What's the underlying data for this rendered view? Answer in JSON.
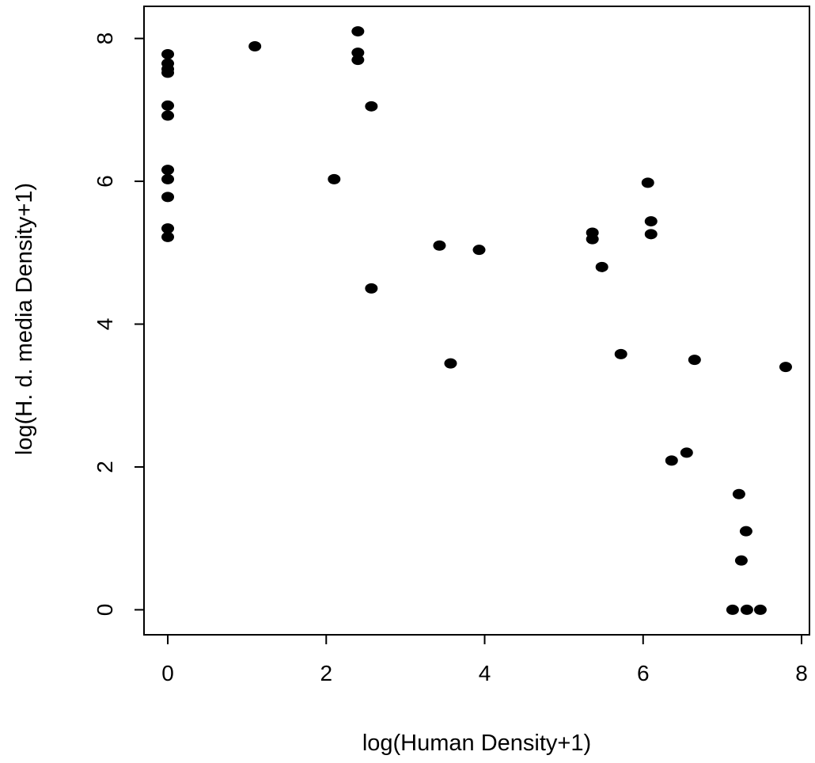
{
  "chart_data": {
    "type": "scatter",
    "title": "",
    "xlabel": "log(Human Density+1)",
    "ylabel": "log(H. d. media Density+1)",
    "xlim": [
      -0.3,
      8.1
    ],
    "ylim": [
      -0.35,
      8.45
    ],
    "x_ticks": [
      "0",
      "2",
      "4",
      "6",
      "8"
    ],
    "y_ticks": [
      "0",
      "2",
      "4",
      "6",
      "8"
    ],
    "grid": false,
    "legend": "none",
    "marker_color": "#000000",
    "points": [
      {
        "x": 0,
        "y": 7.78
      },
      {
        "x": 0,
        "y": 7.65
      },
      {
        "x": 0,
        "y": 7.57
      },
      {
        "x": 0,
        "y": 7.52
      },
      {
        "x": 0,
        "y": 7.06
      },
      {
        "x": 0,
        "y": 6.92
      },
      {
        "x": 0,
        "y": 6.16
      },
      {
        "x": 0,
        "y": 6.03
      },
      {
        "x": 0,
        "y": 5.78
      },
      {
        "x": 0,
        "y": 5.34
      },
      {
        "x": 0,
        "y": 5.22
      },
      {
        "x": 1.1,
        "y": 7.89
      },
      {
        "x": 2.1,
        "y": 6.03
      },
      {
        "x": 2.4,
        "y": 8.1
      },
      {
        "x": 2.4,
        "y": 7.8
      },
      {
        "x": 2.4,
        "y": 7.7
      },
      {
        "x": 2.57,
        "y": 7.05
      },
      {
        "x": 2.57,
        "y": 4.5
      },
      {
        "x": 3.43,
        "y": 5.1
      },
      {
        "x": 3.57,
        "y": 3.45
      },
      {
        "x": 3.93,
        "y": 5.04
      },
      {
        "x": 5.36,
        "y": 5.28
      },
      {
        "x": 5.36,
        "y": 5.19
      },
      {
        "x": 5.48,
        "y": 4.8
      },
      {
        "x": 5.72,
        "y": 3.58
      },
      {
        "x": 6.06,
        "y": 5.98
      },
      {
        "x": 6.1,
        "y": 5.44
      },
      {
        "x": 6.1,
        "y": 5.26
      },
      {
        "x": 6.36,
        "y": 2.09
      },
      {
        "x": 6.55,
        "y": 2.2
      },
      {
        "x": 6.65,
        "y": 3.5
      },
      {
        "x": 7.13,
        "y": 0
      },
      {
        "x": 7.21,
        "y": 1.62
      },
      {
        "x": 7.24,
        "y": 0.69
      },
      {
        "x": 7.3,
        "y": 1.1
      },
      {
        "x": 7.31,
        "y": 0
      },
      {
        "x": 7.48,
        "y": 0
      },
      {
        "x": 7.8,
        "y": 3.4
      }
    ]
  }
}
